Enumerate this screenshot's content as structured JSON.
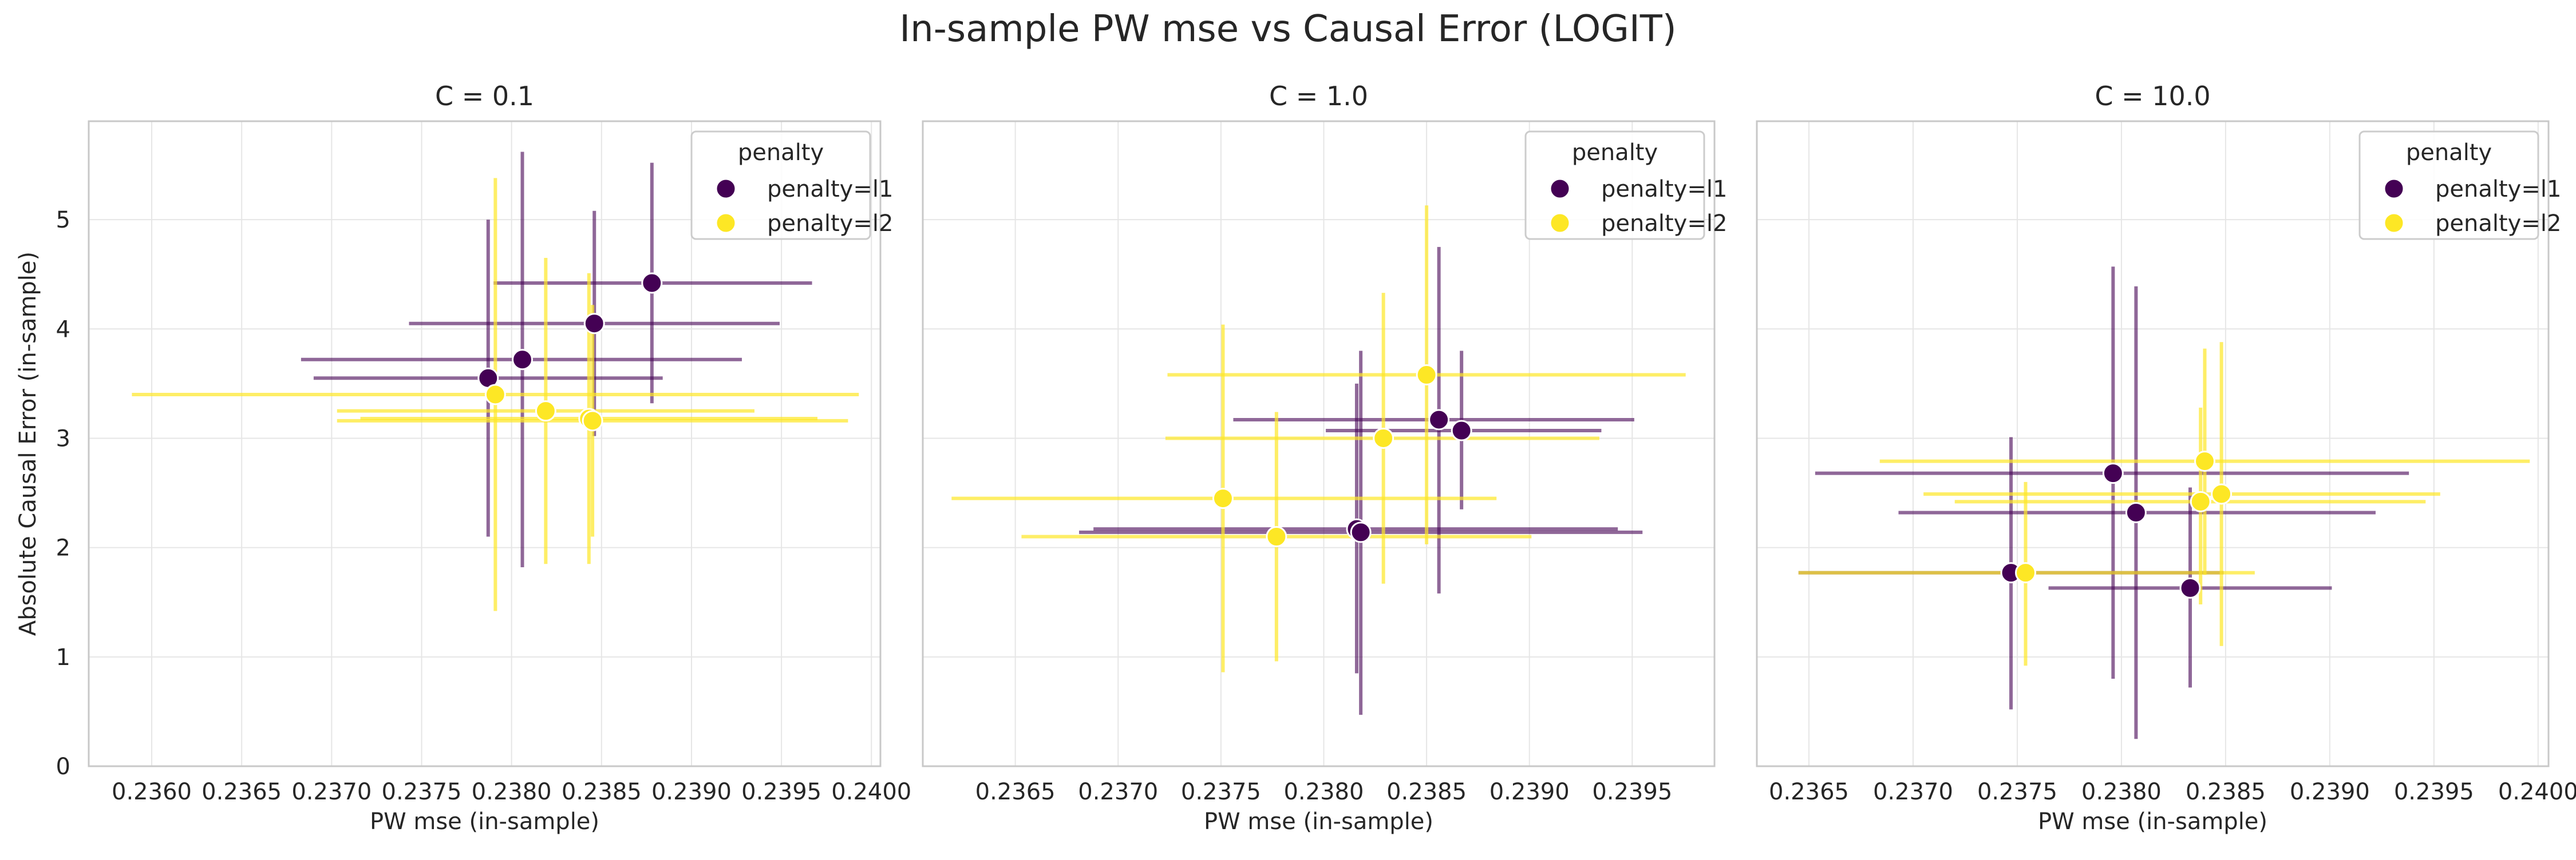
{
  "figure": {
    "title": "In-sample PW mse vs Causal Error (LOGIT)"
  },
  "colors": {
    "l1": "#440154",
    "l2": "#fde725",
    "grid": "#e6e6e6",
    "spine": "#c8c8c8",
    "text": "#262626"
  },
  "chart_data": [
    {
      "type": "scatter",
      "title": "C = 0.1",
      "xlabel": "PW mse (in-sample)",
      "ylabel": "Absolute Causal Error (in-sample)",
      "xlim": [
        0.23565,
        0.24005
      ],
      "ylim": [
        0,
        5.9
      ],
      "xticks": [
        0.236,
        0.2365,
        0.237,
        0.2375,
        0.238,
        0.2385,
        0.239,
        0.2395,
        0.24
      ],
      "xtick_labels": [
        "0.2360",
        "0.2365",
        "0.2370",
        "0.2375",
        "0.2380",
        "0.2385",
        "0.2390",
        "0.2395",
        "0.2400"
      ],
      "yticks": [
        0,
        1,
        2,
        3,
        4,
        5
      ],
      "ytick_labels": [
        "0",
        "1",
        "2",
        "3",
        "4",
        "5"
      ],
      "legend": {
        "title": "penalty",
        "position": "top-right",
        "entries": [
          "penalty=l1",
          "penalty=l2"
        ]
      },
      "grid": true,
      "series": [
        {
          "name": "penalty=l1",
          "color_key": "l1",
          "points": [
            {
              "x": 0.23878,
              "y": 4.42,
              "xerr": [
                0.2379,
                0.23967
              ],
              "yerr": [
                3.32,
                5.52
              ]
            },
            {
              "x": 0.23846,
              "y": 4.05,
              "xerr": [
                0.23743,
                0.23949
              ],
              "yerr": [
                3.02,
                5.08
              ]
            },
            {
              "x": 0.23806,
              "y": 3.72,
              "xerr": [
                0.23683,
                0.23928
              ],
              "yerr": [
                1.82,
                5.62
              ]
            },
            {
              "x": 0.23787,
              "y": 3.55,
              "xerr": [
                0.2369,
                0.23884
              ],
              "yerr": [
                2.1,
                5.0
              ]
            }
          ]
        },
        {
          "name": "penalty=l2",
          "color_key": "l2",
          "points": [
            {
              "x": 0.23791,
              "y": 3.4,
              "xerr": [
                0.23589,
                0.23993
              ],
              "yerr": [
                1.42,
                5.38
              ]
            },
            {
              "x": 0.23819,
              "y": 3.25,
              "xerr": [
                0.23703,
                0.23935
              ],
              "yerr": [
                1.85,
                4.65
              ]
            },
            {
              "x": 0.23843,
              "y": 3.18,
              "xerr": [
                0.23716,
                0.2397
              ],
              "yerr": [
                1.85,
                4.51
              ]
            },
            {
              "x": 0.23845,
              "y": 3.16,
              "xerr": [
                0.23703,
                0.23987
              ],
              "yerr": [
                2.1,
                4.22
              ]
            }
          ]
        }
      ]
    },
    {
      "type": "scatter",
      "title": "C = 1.0",
      "xlabel": "PW mse (in-sample)",
      "ylabel": "",
      "xlim": [
        0.23605,
        0.2399
      ],
      "ylim": [
        0,
        5.9
      ],
      "xticks": [
        0.2365,
        0.237,
        0.2375,
        0.238,
        0.2385,
        0.239,
        0.2395
      ],
      "xtick_labels": [
        "0.2365",
        "0.2370",
        "0.2375",
        "0.2380",
        "0.2385",
        "0.2390",
        "0.2395"
      ],
      "yticks": [
        0,
        1,
        2,
        3,
        4,
        5
      ],
      "ytick_labels": [
        "",
        "",
        "",
        "",
        "",
        ""
      ],
      "legend": {
        "title": "penalty",
        "position": "top-right",
        "entries": [
          "penalty=l1",
          "penalty=l2"
        ]
      },
      "grid": true,
      "series": [
        {
          "name": "penalty=l1",
          "color_key": "l1",
          "points": [
            {
              "x": 0.23856,
              "y": 3.17,
              "xerr": [
                0.23756,
                0.23951
              ],
              "yerr": [
                1.58,
                4.75
              ]
            },
            {
              "x": 0.23867,
              "y": 3.07,
              "xerr": [
                0.23801,
                0.23935
              ],
              "yerr": [
                2.35,
                3.8
              ]
            },
            {
              "x": 0.23816,
              "y": 2.17,
              "xerr": [
                0.23688,
                0.23943
              ],
              "yerr": [
                0.85,
                3.5
              ]
            },
            {
              "x": 0.23818,
              "y": 2.14,
              "xerr": [
                0.23681,
                0.23955
              ],
              "yerr": [
                0.47,
                3.8
              ]
            }
          ]
        },
        {
          "name": "penalty=l2",
          "color_key": "l2",
          "points": [
            {
              "x": 0.2385,
              "y": 3.58,
              "xerr": [
                0.23724,
                0.23976
              ],
              "yerr": [
                2.03,
                5.13
              ]
            },
            {
              "x": 0.23829,
              "y": 3.0,
              "xerr": [
                0.23723,
                0.23934
              ],
              "yerr": [
                1.67,
                4.33
              ]
            },
            {
              "x": 0.23751,
              "y": 2.45,
              "xerr": [
                0.23619,
                0.23884
              ],
              "yerr": [
                0.86,
                4.04
              ]
            },
            {
              "x": 0.23777,
              "y": 2.1,
              "xerr": [
                0.23653,
                0.23901
              ],
              "yerr": [
                0.96,
                3.24
              ]
            }
          ]
        }
      ]
    },
    {
      "type": "scatter",
      "title": "C = 10.0",
      "xlabel": "PW mse (in-sample)",
      "ylabel": "",
      "xlim": [
        0.23625,
        0.24005
      ],
      "ylim": [
        0,
        5.9
      ],
      "xticks": [
        0.2365,
        0.237,
        0.2375,
        0.238,
        0.2385,
        0.239,
        0.2395,
        0.24
      ],
      "xtick_labels": [
        "0.2365",
        "0.2370",
        "0.2375",
        "0.2380",
        "0.2385",
        "0.2390",
        "0.2395",
        "0.2400"
      ],
      "yticks": [
        0,
        1,
        2,
        3,
        4,
        5
      ],
      "ytick_labels": [
        "",
        "",
        "",
        "",
        "",
        ""
      ],
      "legend": {
        "title": "penalty",
        "position": "top-right",
        "entries": [
          "penalty=l1",
          "penalty=l2"
        ]
      },
      "grid": true,
      "series": [
        {
          "name": "penalty=l1",
          "color_key": "l1",
          "points": [
            {
              "x": 0.23796,
              "y": 2.68,
              "xerr": [
                0.23653,
                0.23938
              ],
              "yerr": [
                0.8,
                4.57
              ]
            },
            {
              "x": 0.23807,
              "y": 2.32,
              "xerr": [
                0.23693,
                0.23922
              ],
              "yerr": [
                0.25,
                4.39
              ]
            },
            {
              "x": 0.23747,
              "y": 1.77,
              "xerr": [
                0.23645,
                0.23849
              ],
              "yerr": [
                0.52,
                3.01
              ]
            },
            {
              "x": 0.23833,
              "y": 1.63,
              "xerr": [
                0.23765,
                0.23901
              ],
              "yerr": [
                0.72,
                2.55
              ]
            }
          ]
        },
        {
          "name": "penalty=l2",
          "color_key": "l2",
          "points": [
            {
              "x": 0.2384,
              "y": 2.79,
              "xerr": [
                0.23684,
                0.23996
              ],
              "yerr": [
                1.75,
                3.82
              ]
            },
            {
              "x": 0.23848,
              "y": 2.49,
              "xerr": [
                0.23705,
                0.23953
              ],
              "yerr": [
                1.1,
                3.88
              ]
            },
            {
              "x": 0.23838,
              "y": 2.42,
              "xerr": [
                0.2372,
                0.23946
              ],
              "yerr": [
                1.48,
                3.28
              ]
            },
            {
              "x": 0.23754,
              "y": 1.77,
              "xerr": [
                0.23645,
                0.23864
              ],
              "yerr": [
                0.92,
                2.6
              ]
            }
          ]
        }
      ]
    }
  ]
}
